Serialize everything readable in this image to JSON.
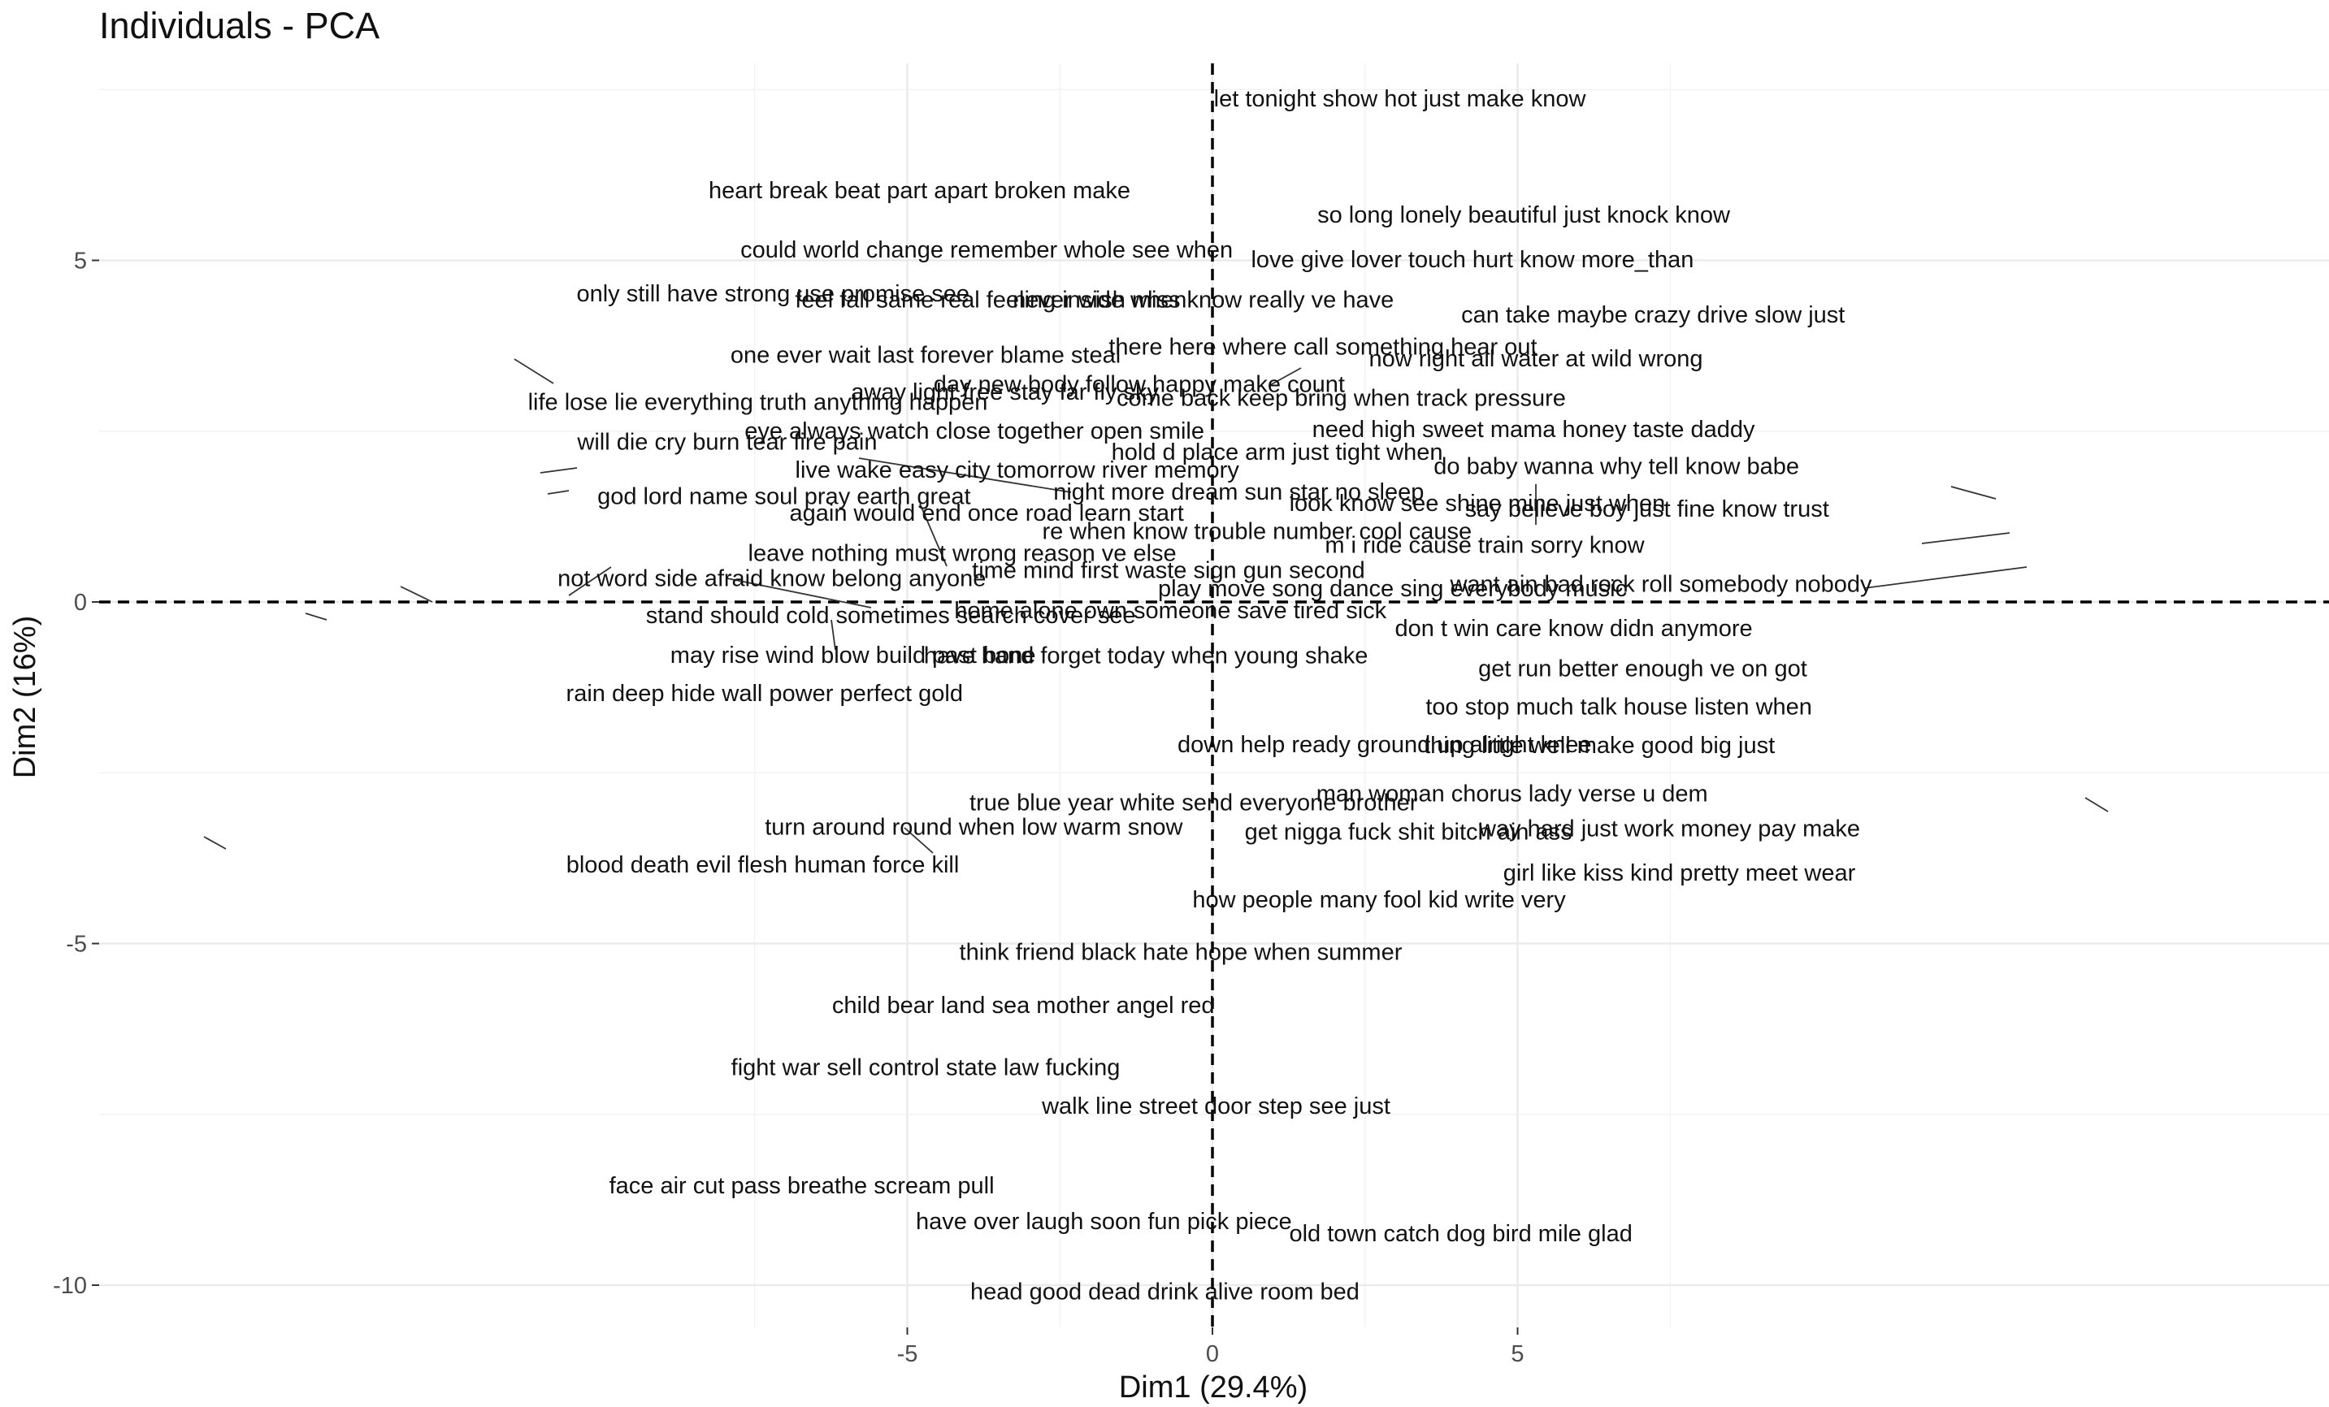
{
  "chart_data": {
    "type": "scatter",
    "title": "Individuals - PCA",
    "xlabel": "Dim1 (29.4%)",
    "ylabel": "Dim2 (16%)",
    "xlim": [
      -9.2,
      9.1
    ],
    "ylim": [
      -10.85,
      8.1
    ],
    "x_ticks": [
      -5,
      0,
      5
    ],
    "y_ticks": [
      5,
      0,
      -5,
      -10
    ],
    "grid": true,
    "reference_lines": {
      "x": 0,
      "y": 0
    },
    "points": [
      {
        "label": "let tonight show hot just make know",
        "x": 3.07,
        "y": 7.37
      },
      {
        "label": "heart break beat part apart broken make",
        "x": -4.8,
        "y": 6.03
      },
      {
        "label": "so long lonely beautiful just knock know",
        "x": 5.1,
        "y": 5.67
      },
      {
        "label": "could world change remember whole see when",
        "x": -3.7,
        "y": 5.16
      },
      {
        "label": "love give lover touch hurt know more_than",
        "x": 4.26,
        "y": 5.02
      },
      {
        "label": "only still have strong use promise see",
        "x": -7.2,
        "y": 4.52
      },
      {
        "label": "feel fall same real feeling inside when",
        "x": -3.63,
        "y": 4.43
      },
      {
        "label": "never wish miss know really ve have",
        "x": -0.15,
        "y": 4.43
      },
      {
        "label": "can take maybe crazy drive slow just",
        "x": 7.22,
        "y": 4.21
      },
      {
        "label": "one ever wait last forever blame steal",
        "x": -4.7,
        "y": 3.62
      },
      {
        "label": "there here where call something hear out",
        "x": 1.81,
        "y": 3.74
      },
      {
        "label": "now right all water at wild wrong",
        "x": 5.3,
        "y": 3.57
      },
      {
        "label": "day new body follow happy make count",
        "x": -1.2,
        "y": 3.19
      },
      {
        "label": "away light free stay far fly sky",
        "x": -3.4,
        "y": 3.08
      },
      {
        "label": "come back keep bring when track pressure",
        "x": 2.11,
        "y": 2.99
      },
      {
        "label": "life lose lie everything truth anything happen",
        "x": -7.45,
        "y": 2.93
      },
      {
        "label": "need high sweet mama honey taste daddy",
        "x": 5.26,
        "y": 2.53
      },
      {
        "label": "eye always watch close together open smile",
        "x": -3.9,
        "y": 2.51
      },
      {
        "label": "will die cry burn tear fire pain",
        "x": -7.95,
        "y": 2.35
      },
      {
        "label": "hold d place arm just tight when",
        "x": 1.06,
        "y": 2.2
      },
      {
        "label": "do baby wanna why tell know babe",
        "x": 6.62,
        "y": 1.99
      },
      {
        "label": "live wake easy city tomorrow river memory",
        "x": -3.2,
        "y": 1.94
      },
      {
        "label": "night more dream sun star no sleep",
        "x": 0.43,
        "y": 1.62
      },
      {
        "label": "god lord name soul pray earth great",
        "x": -7.02,
        "y": 1.55
      },
      {
        "label": "look know see shine mine just when",
        "x": 4.34,
        "y": 1.45
      },
      {
        "label": "say believe boy just fine know trust",
        "x": 7.12,
        "y": 1.37
      },
      {
        "label": "again would end once road learn start",
        "x": -3.7,
        "y": 1.31
      },
      {
        "label": "re when know trouble number cool cause",
        "x": 0.73,
        "y": 1.04
      },
      {
        "label": "m i ride cause train sorry know",
        "x": 4.46,
        "y": 0.84
      },
      {
        "label": "leave nothing must wrong reason ve else",
        "x": -4.1,
        "y": 0.72
      },
      {
        "label": "time mind first waste sign gun second",
        "x": -0.72,
        "y": 0.47
      },
      {
        "label": "not word side afraid know belong anyone",
        "x": -7.22,
        "y": 0.35
      },
      {
        "label": "play move song dance sing everybody music",
        "x": 2.95,
        "y": 0.2
      },
      {
        "label": "want ain bad rock roll somebody nobody",
        "x": 7.35,
        "y": 0.27
      },
      {
        "label": "home alone own someone save tired sick",
        "x": -0.69,
        "y": -0.12
      },
      {
        "label": "stand should cold sometimes search cover see",
        "x": -5.27,
        "y": -0.19
      },
      {
        "label": "don t win care know didn anymore",
        "x": 5.92,
        "y": -0.38
      },
      {
        "label": "have hand forget today when young shake",
        "x": -1.09,
        "y": -0.78
      },
      {
        "label": "may rise wind blow build past bone",
        "x": -5.89,
        "y": -0.77
      },
      {
        "label": "get run better enough ve on got",
        "x": 7.05,
        "y": -0.97
      },
      {
        "label": "rain deep hide wall power perfect gold",
        "x": -7.34,
        "y": -1.33
      },
      {
        "label": "too stop much talk house listen when",
        "x": 6.66,
        "y": -1.53
      },
      {
        "label": "down help ready ground up alright knee",
        "x": 2.82,
        "y": -2.08
      },
      {
        "label": "thing little well make good big just",
        "x": 6.34,
        "y": -2.09
      },
      {
        "label": "man woman chorus lady verse u dem",
        "x": 4.91,
        "y": -2.8
      },
      {
        "label": "true blue year white send everyone brother",
        "x": -0.31,
        "y": -2.93
      },
      {
        "label": "way hard just work money pay make",
        "x": 7.49,
        "y": -3.31
      },
      {
        "label": "turn around round when low warm snow",
        "x": -3.91,
        "y": -3.29
      },
      {
        "label": "get nigga fuck shit bitch ain ass",
        "x": 3.21,
        "y": -3.36
      },
      {
        "label": "blood death evil flesh human force kill",
        "x": -7.37,
        "y": -3.84
      },
      {
        "label": "girl like kiss kind pretty meet wear",
        "x": 7.65,
        "y": -3.96
      },
      {
        "label": "how people many fool kid write very",
        "x": 2.73,
        "y": -4.35
      },
      {
        "label": "think friend black hate hope when summer",
        "x": -0.52,
        "y": -5.12
      },
      {
        "label": "child bear land sea mother angel red",
        "x": -3.1,
        "y": -5.9
      },
      {
        "label": "fight war sell control state law fucking",
        "x": -4.7,
        "y": -6.81
      },
      {
        "label": "walk line street door step see just",
        "x": 0.06,
        "y": -7.37
      },
      {
        "label": "face air cut pass breathe scream pull",
        "x": -6.73,
        "y": -8.54
      },
      {
        "label": "have over laugh soon fun pick piece",
        "x": -1.78,
        "y": -9.06
      },
      {
        "label": "old town catch dog bird mile glad",
        "x": 4.07,
        "y": -9.24
      },
      {
        "label": "head good dead drink alive room bed",
        "x": -0.78,
        "y": -10.09
      }
    ]
  }
}
